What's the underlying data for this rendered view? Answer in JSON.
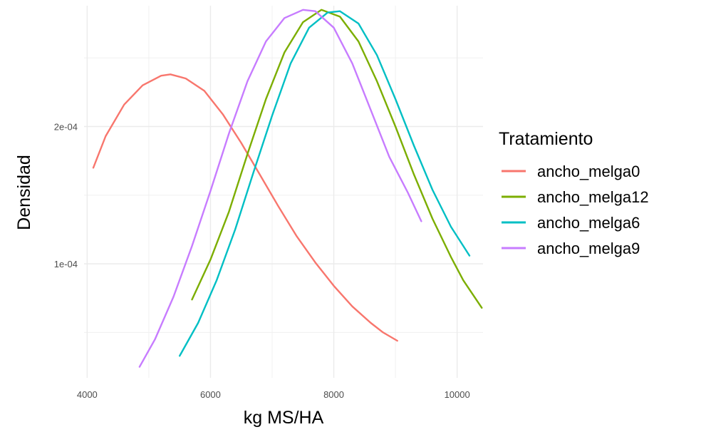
{
  "chart_data": {
    "type": "line",
    "xlabel": "kg MS/HA",
    "ylabel": "Densidad",
    "xlim": [
      3950,
      10420
    ],
    "ylim": [
      1.7e-05,
      0.000288
    ],
    "x_ticks": [
      4000,
      6000,
      8000,
      10000
    ],
    "x_tick_labels": [
      "4000",
      "6000",
      "8000",
      "10000"
    ],
    "y_ticks": [
      0.0001,
      0.0002
    ],
    "y_tick_labels": [
      "1e-04",
      "2e-04"
    ],
    "x_minor_gridlines": [
      5000,
      7000,
      9000
    ],
    "y_minor_gridlines": [
      5e-05,
      0.00015,
      0.00025
    ],
    "grid": true,
    "legend_title": "Tratamiento",
    "legend_position": "right",
    "series": [
      {
        "name": "ancho_melga0",
        "color": "#F8766D",
        "points": [
          [
            4100,
            0.00017
          ],
          [
            4300,
            0.000193
          ],
          [
            4600,
            0.000216
          ],
          [
            4900,
            0.00023
          ],
          [
            5200,
            0.000237
          ],
          [
            5350,
            0.000238
          ],
          [
            5600,
            0.000235
          ],
          [
            5900,
            0.000226
          ],
          [
            6200,
            0.000209
          ],
          [
            6500,
            0.000188
          ],
          [
            6800,
            0.000165
          ],
          [
            7100,
            0.000142
          ],
          [
            7400,
            0.00012
          ],
          [
            7700,
            0.000101
          ],
          [
            8000,
            8.4e-05
          ],
          [
            8300,
            6.9e-05
          ],
          [
            8600,
            5.7e-05
          ],
          [
            8800,
            5e-05
          ],
          [
            9030,
            4.4e-05
          ]
        ]
      },
      {
        "name": "ancho_melga12",
        "color": "#7CAE00",
        "points": [
          [
            5700,
            7.4e-05
          ],
          [
            6000,
            0.000103
          ],
          [
            6300,
            0.000138
          ],
          [
            6600,
            0.00018
          ],
          [
            6900,
            0.00022
          ],
          [
            7200,
            0.000254
          ],
          [
            7500,
            0.000276
          ],
          [
            7800,
            0.000285
          ],
          [
            8100,
            0.00028
          ],
          [
            8400,
            0.000262
          ],
          [
            8700,
            0.000233
          ],
          [
            9000,
            0.0002
          ],
          [
            9300,
            0.000165
          ],
          [
            9600,
            0.000133
          ],
          [
            9900,
            0.000105
          ],
          [
            10100,
            8.8e-05
          ],
          [
            10400,
            6.8e-05
          ]
        ]
      },
      {
        "name": "ancho_melga6",
        "color": "#00BFC4",
        "points": [
          [
            5500,
            3.3e-05
          ],
          [
            5800,
            5.7e-05
          ],
          [
            6100,
            8.8e-05
          ],
          [
            6400,
            0.000125
          ],
          [
            6700,
            0.000167
          ],
          [
            7000,
            0.000208
          ],
          [
            7300,
            0.000246
          ],
          [
            7600,
            0.000272
          ],
          [
            7900,
            0.000283
          ],
          [
            8100,
            0.000284
          ],
          [
            8400,
            0.000275
          ],
          [
            8700,
            0.000252
          ],
          [
            9000,
            0.00022
          ],
          [
            9300,
            0.000186
          ],
          [
            9600,
            0.000154
          ],
          [
            9900,
            0.000127
          ],
          [
            10200,
            0.000106
          ]
        ]
      },
      {
        "name": "ancho_melga9",
        "color": "#C77CFF",
        "points": [
          [
            4850,
            2.5e-05
          ],
          [
            5100,
            4.5e-05
          ],
          [
            5400,
            7.6e-05
          ],
          [
            5700,
            0.000113
          ],
          [
            6000,
            0.000153
          ],
          [
            6300,
            0.000195
          ],
          [
            6600,
            0.000233
          ],
          [
            6900,
            0.000262
          ],
          [
            7200,
            0.000279
          ],
          [
            7500,
            0.000285
          ],
          [
            7700,
            0.000284
          ],
          [
            8000,
            0.000272
          ],
          [
            8300,
            0.000246
          ],
          [
            8600,
            0.000212
          ],
          [
            8900,
            0.000178
          ],
          [
            9200,
            0.000152
          ],
          [
            9420,
            0.000131
          ]
        ]
      }
    ]
  }
}
